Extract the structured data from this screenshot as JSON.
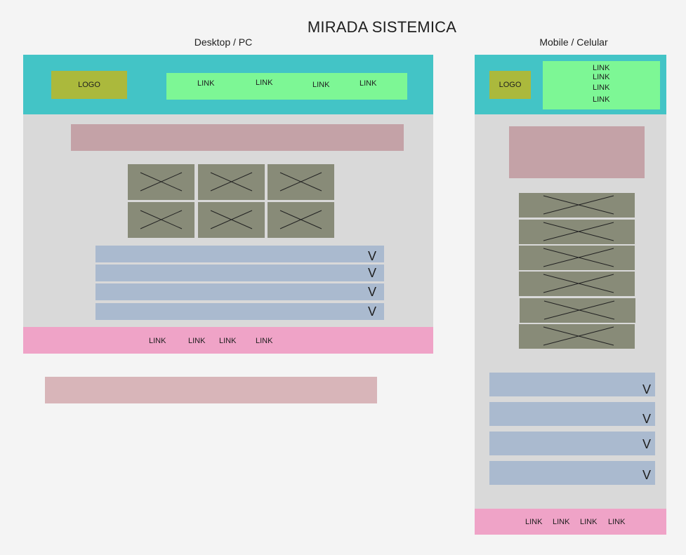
{
  "title": "MIRADA SISTEMICA",
  "desktop": {
    "label": "Desktop / PC",
    "logo": "LOGO",
    "nav_links": [
      "LINK",
      "LINK",
      "LINK",
      "LINK"
    ],
    "accordion_icons": [
      "V",
      "V",
      "V",
      "V"
    ],
    "footer_links": [
      "LINK",
      "LINK",
      "LINK",
      "LINK"
    ]
  },
  "mobile": {
    "label": "Mobile / Celular",
    "logo": "LOGO",
    "nav_links": [
      "LINK",
      "LINK",
      "LINK",
      "LINK"
    ],
    "accordion_icons": [
      "V",
      "V",
      "V",
      "V"
    ],
    "footer_links": [
      "LINK",
      "LINK",
      "LINK",
      "LINK"
    ]
  },
  "colors": {
    "background": "#f4f4f4",
    "frame": "#d9d9d9",
    "header": "#43c4c6",
    "logo": "#abb93c",
    "nav": "#7df795",
    "banner": "#c4a2a7",
    "image_placeholder": "#888b78",
    "accordion": "#aabacf",
    "footer": "#efa3c7"
  }
}
